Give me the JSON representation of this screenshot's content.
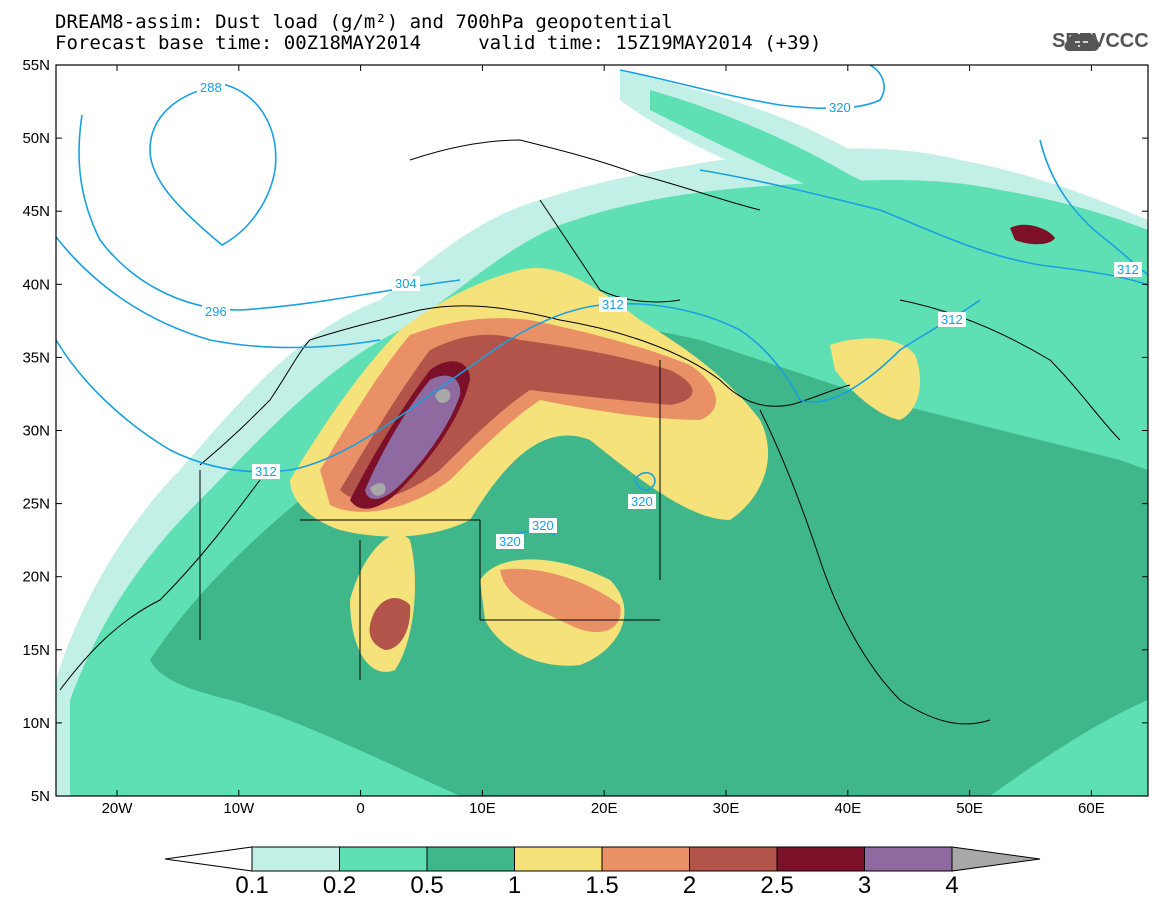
{
  "header": {
    "title_line1": "DREAM8-assim: Dust load (g/m²) and 700hPa geopotential",
    "title_line2": "Forecast base time: 00Z18MAY2014     valid time: 15Z19MAY2014 (+39)",
    "logo_text": "SEEVCCC",
    "logo_icon": "cloud-icon"
  },
  "axes": {
    "lat_labels": [
      "55N",
      "50N",
      "45N",
      "40N",
      "35N",
      "30N",
      "25N",
      "20N",
      "15N",
      "10N",
      "5N"
    ],
    "lon_labels": [
      "20W",
      "10W",
      "0",
      "10E",
      "20E",
      "30E",
      "40E",
      "50E",
      "60E"
    ]
  },
  "contour_labels": [
    "288",
    "296",
    "304",
    "312",
    "320",
    "312",
    "312",
    "312",
    "320",
    "320",
    "320",
    "312"
  ],
  "colorbar": {
    "labels": [
      "0.1",
      "0.2",
      "0.5",
      "1",
      "1.5",
      "2",
      "2.5",
      "3",
      "4"
    ],
    "colors": [
      "#c2efe6",
      "#5fe0b4",
      "#3fb78a",
      "#f5e27a",
      "#ea9067",
      "#b3544b",
      "#7d1029",
      "#8e6aa0",
      "#a8a8a8"
    ]
  },
  "colors": {
    "ocean": "#ffffff",
    "contour_line": "#1aa0e0",
    "border_line": "#000000"
  }
}
